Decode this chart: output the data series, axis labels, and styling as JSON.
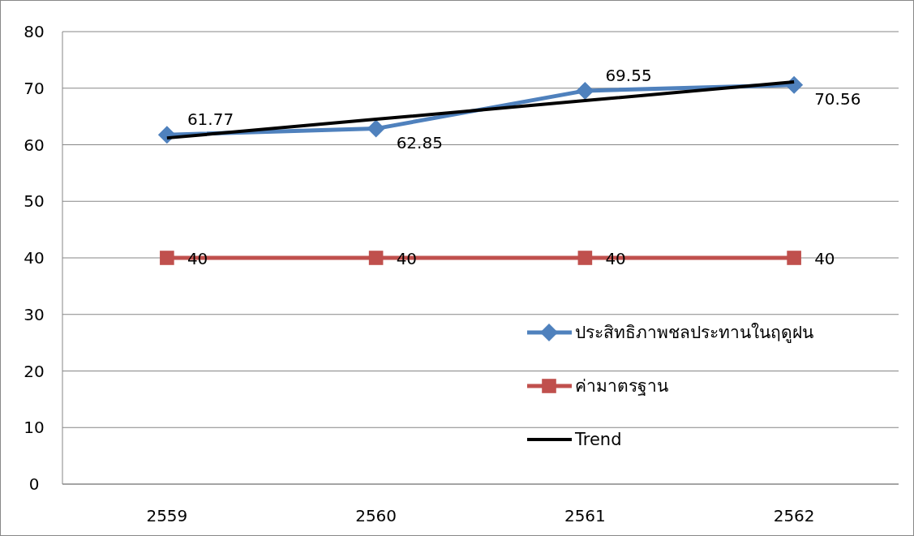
{
  "chart_data": {
    "type": "line",
    "categories": [
      "2559",
      "2560",
      "2561",
      "2562"
    ],
    "series": [
      {
        "name": "ประสิทธิภาพชลประทานในฤดูฝน",
        "color": "#4f81bd",
        "marker": "diamond",
        "values": [
          61.77,
          62.85,
          69.55,
          70.56
        ],
        "value_labels": [
          "61.77",
          "62.85",
          "69.55",
          "70.56"
        ]
      },
      {
        "name": "ค่ามาตรฐาน",
        "color": "#c0504d",
        "marker": "square",
        "values": [
          40,
          40,
          40,
          40
        ],
        "value_labels": [
          "40",
          "40",
          "40",
          "40"
        ]
      },
      {
        "name": "Trend",
        "color": "#000000",
        "marker": "none",
        "values": [
          61.2,
          64.5,
          67.8,
          71.1
        ]
      }
    ],
    "ylim": [
      0,
      80
    ],
    "yticks": [
      0,
      10,
      20,
      30,
      40,
      50,
      60,
      70,
      80
    ],
    "grid": "y",
    "legend": "right"
  }
}
